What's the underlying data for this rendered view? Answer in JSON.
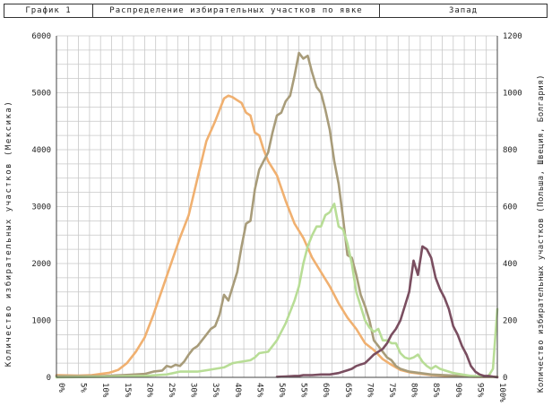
{
  "header": {
    "figure_label": "График 1",
    "title": "Распределение избирательных участков по явке",
    "region": "Запад"
  },
  "chart_data": {
    "type": "line",
    "xlabel": "",
    "ylabel_left": "Количество избирательных участков (Мексика)",
    "ylabel_right": "Количество избирательных участков (Польша, Швеция, Болгария)",
    "xlim": [
      0,
      100
    ],
    "ylim_left": [
      0,
      6000
    ],
    "ylim_right": [
      0,
      1200
    ],
    "x_ticks": [
      "0%",
      "5%",
      "10%",
      "15%",
      "20%",
      "25%",
      "30%",
      "35%",
      "40%",
      "45%",
      "50%",
      "55%",
      "60%",
      "65%",
      "70%",
      "75%",
      "80%",
      "85%",
      "90%",
      "95%",
      "100%"
    ],
    "y_ticks_left": [
      "0",
      "1000",
      "2000",
      "3000",
      "4000",
      "5000",
      "6000"
    ],
    "y_ticks_right": [
      "0",
      "200",
      "400",
      "600",
      "800",
      "1000",
      "1200"
    ],
    "grid": true,
    "series": [
      {
        "axis": "left",
        "color": "#f0b070",
        "x": [
          0,
          5,
          8,
          10,
          12,
          14,
          16,
          18,
          20,
          22,
          24,
          26,
          28,
          30,
          32,
          34,
          36,
          38,
          39,
          40,
          41,
          42,
          43,
          44,
          45,
          46,
          47,
          48,
          50,
          52,
          54,
          56,
          58,
          60,
          62,
          64,
          66,
          68,
          70,
          72,
          74,
          76,
          78,
          80,
          85,
          90,
          95,
          100
        ],
        "y": [
          40,
          30,
          40,
          60,
          80,
          130,
          250,
          450,
          700,
          1100,
          1550,
          2000,
          2450,
          2850,
          3500,
          4150,
          4500,
          4900,
          4950,
          4920,
          4870,
          4820,
          4650,
          4600,
          4300,
          4250,
          4000,
          3800,
          3550,
          3100,
          2700,
          2450,
          2100,
          1850,
          1600,
          1300,
          1050,
          850,
          600,
          480,
          320,
          220,
          130,
          90,
          40,
          20,
          10,
          10
        ]
      },
      {
        "axis": "left",
        "color": "#a89c7a",
        "x": [
          0,
          10,
          15,
          20,
          22,
          24,
          25,
          26,
          27,
          28,
          29,
          30,
          31,
          32,
          33,
          34,
          35,
          36,
          37,
          38,
          39,
          40,
          41,
          42,
          43,
          44,
          45,
          46,
          47,
          48,
          49,
          50,
          51,
          52,
          53,
          54,
          55,
          56,
          57,
          58,
          59,
          60,
          61,
          62,
          63,
          64,
          65,
          66,
          67,
          68,
          69,
          70,
          71,
          72,
          73,
          74,
          75,
          76,
          77,
          78,
          80,
          85,
          90,
          95,
          100
        ],
        "y": [
          20,
          20,
          40,
          60,
          100,
          120,
          200,
          180,
          220,
          200,
          280,
          400,
          500,
          550,
          650,
          750,
          850,
          900,
          1100,
          1450,
          1350,
          1600,
          1850,
          2300,
          2700,
          2750,
          3300,
          3650,
          3800,
          3950,
          4300,
          4600,
          4650,
          4850,
          4950,
          5300,
          5700,
          5600,
          5650,
          5350,
          5100,
          5000,
          4700,
          4350,
          3800,
          3400,
          2800,
          2150,
          2100,
          1800,
          1450,
          1250,
          1000,
          650,
          550,
          450,
          350,
          300,
          200,
          150,
          100,
          50,
          30,
          20,
          10
        ]
      },
      {
        "axis": "right",
        "color": "#b8dd96",
        "x": [
          0,
          10,
          20,
          25,
          28,
          30,
          32,
          34,
          36,
          38,
          40,
          42,
          44,
          45,
          46,
          48,
          50,
          52,
          54,
          55,
          56,
          57,
          58,
          59,
          60,
          61,
          62,
          63,
          64,
          65,
          66,
          67,
          68,
          69,
          70,
          71,
          72,
          73,
          74,
          75,
          76,
          77,
          78,
          79,
          80,
          81,
          82,
          83,
          84,
          85,
          86,
          87,
          88,
          89,
          90,
          92,
          94,
          96,
          98,
          99,
          100
        ],
        "y": [
          0,
          2,
          5,
          10,
          20,
          20,
          20,
          25,
          30,
          35,
          50,
          55,
          60,
          70,
          85,
          90,
          130,
          190,
          270,
          320,
          400,
          460,
          500,
          530,
          530,
          570,
          580,
          610,
          530,
          520,
          470,
          400,
          300,
          250,
          200,
          175,
          160,
          170,
          130,
          130,
          120,
          120,
          85,
          70,
          65,
          70,
          80,
          55,
          40,
          30,
          40,
          30,
          25,
          20,
          15,
          10,
          5,
          3,
          5,
          30,
          240
        ]
      },
      {
        "axis": "right",
        "color": "#7a4e60",
        "x": [
          50,
          52,
          54,
          55,
          56,
          58,
          60,
          62,
          64,
          65,
          66,
          67,
          68,
          69,
          70,
          71,
          72,
          73,
          74,
          75,
          76,
          77,
          78,
          79,
          80,
          81,
          82,
          83,
          84,
          85,
          86,
          87,
          88,
          89,
          90,
          91,
          92,
          93,
          94,
          95,
          96,
          97,
          98,
          100
        ],
        "y": [
          2,
          3,
          5,
          5,
          8,
          8,
          10,
          10,
          15,
          20,
          25,
          30,
          40,
          45,
          50,
          65,
          80,
          90,
          100,
          120,
          150,
          170,
          200,
          250,
          300,
          410,
          360,
          460,
          450,
          420,
          350,
          310,
          280,
          240,
          180,
          150,
          110,
          80,
          40,
          20,
          10,
          5,
          5,
          0
        ]
      }
    ]
  }
}
